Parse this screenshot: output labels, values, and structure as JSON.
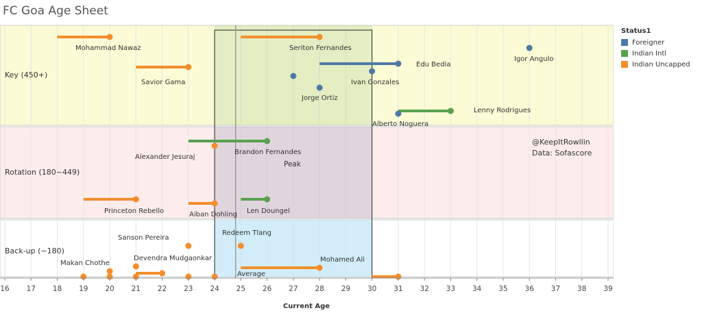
{
  "title": "FC Goa Age Sheet",
  "chart_data": {
    "type": "scatter",
    "xlabel": "Current Age",
    "x_ticks": [
      16,
      17,
      18,
      19,
      20,
      21,
      22,
      23,
      24,
      25,
      26,
      27,
      28,
      29,
      30,
      31,
      32,
      33,
      34,
      35,
      36,
      37,
      38,
      39
    ],
    "xlim": [
      16,
      39
    ],
    "zones": [
      {
        "label": "Key (450+)",
        "color": "#fbfbd5"
      },
      {
        "label": "Rotation (180~449)",
        "color": "#fdecec"
      },
      {
        "label": "Back-up (~180)",
        "color": "#ffffff"
      }
    ],
    "peak_label": "Peak",
    "peak_range": [
      24,
      30
    ],
    "average_label": "Average",
    "average_age": 24.8,
    "legend_title": "Status1",
    "legend": [
      {
        "name": "Foreigner",
        "color": "#4e79a7"
      },
      {
        "name": "Indian Intl",
        "color": "#59a14f"
      },
      {
        "name": "Indian Uncapped",
        "color": "#f28e2b"
      }
    ],
    "annotation": [
      "@KeepItRowllin",
      "Data: Sofascore"
    ],
    "players": [
      {
        "name": "Mohammad Nawaz",
        "status": "Indian Uncapped",
        "zone": "Key (450+)",
        "age": 20,
        "line_start": 18
      },
      {
        "name": "Seriton Fernandes",
        "status": "Indian Uncapped",
        "zone": "Key (450+)",
        "age": 28,
        "line_start": 25
      },
      {
        "name": "Igor Angulo",
        "status": "Foreigner",
        "zone": "Key (450+)",
        "age": 36
      },
      {
        "name": "Edu Bedia",
        "status": "Foreigner",
        "zone": "Key (450+)",
        "age": 31,
        "line_start": 28
      },
      {
        "name": "Savior Gama",
        "status": "Indian Uncapped",
        "zone": "Key (450+)",
        "age": 23,
        "line_start": 21
      },
      {
        "name": "Ivan Gonzales",
        "status": "Foreigner",
        "zone": "Key (450+)",
        "age": 30
      },
      {
        "name": "",
        "status": "Foreigner",
        "zone": "Key (450+)",
        "age": 27
      },
      {
        "name": "Jorge Ortiz",
        "status": "Foreigner",
        "zone": "Key (450+)",
        "age": 28
      },
      {
        "name": "Lenny Rodrigues",
        "status": "Indian Intl",
        "zone": "Key (450+)",
        "age": 33,
        "line_start": 31
      },
      {
        "name": "Alberto Noguera",
        "status": "Foreigner",
        "zone": "Key (450+)",
        "age": 31
      },
      {
        "name": "Brandon Fernandes",
        "status": "Indian Intl",
        "zone": "Rotation (180~449)",
        "age": 26,
        "line_start": 23
      },
      {
        "name": "Alexander Jesuraj",
        "status": "Indian Uncapped",
        "zone": "Rotation (180~449)",
        "age": 24
      },
      {
        "name": "Princeton Rebello",
        "status": "Indian Uncapped",
        "zone": "Rotation (180~449)",
        "age": 21,
        "line_start": 19
      },
      {
        "name": "Aiban Dohling",
        "status": "Indian Uncapped",
        "zone": "Rotation (180~449)",
        "age": 24,
        "line_start": 23
      },
      {
        "name": "Len Doungel",
        "status": "Indian Intl",
        "zone": "Rotation (180~449)",
        "age": 26,
        "line_start": 25
      },
      {
        "name": "Sanson Pereira",
        "status": "Indian Uncapped",
        "zone": "Back-up (~180)",
        "age": 23
      },
      {
        "name": "Redeem Tlang",
        "status": "Indian Uncapped",
        "zone": "Back-up (~180)",
        "age": 25
      },
      {
        "name": "Devendra Mudgaonkar",
        "status": "Indian Uncapped",
        "zone": "Back-up (~180)",
        "age": 21
      },
      {
        "name": "Makan Chothe",
        "status": "Indian Uncapped",
        "zone": "Back-up (~180)",
        "age": 20
      },
      {
        "name": "Mohamed Ali",
        "status": "Indian Uncapped",
        "zone": "Back-up (~180)",
        "age": 28,
        "line_start": 25
      },
      {
        "name": "",
        "status": "Indian Uncapped",
        "zone": "Back-up (~180)",
        "age": 19
      },
      {
        "name": "",
        "status": "Indian Uncapped",
        "zone": "Back-up (~180)",
        "age": 20
      },
      {
        "name": "",
        "status": "Indian Uncapped",
        "zone": "Back-up (~180)",
        "age": 21
      },
      {
        "name": "",
        "status": "Indian Uncapped",
        "zone": "Back-up (~180)",
        "age": 22,
        "line_start": 21
      },
      {
        "name": "",
        "status": "Indian Uncapped",
        "zone": "Back-up (~180)",
        "age": 23
      },
      {
        "name": "",
        "status": "Indian Uncapped",
        "zone": "Back-up (~180)",
        "age": 24
      },
      {
        "name": "",
        "status": "Indian Uncapped",
        "zone": "Back-up (~180)",
        "age": 31,
        "line_start": 30
      }
    ]
  }
}
